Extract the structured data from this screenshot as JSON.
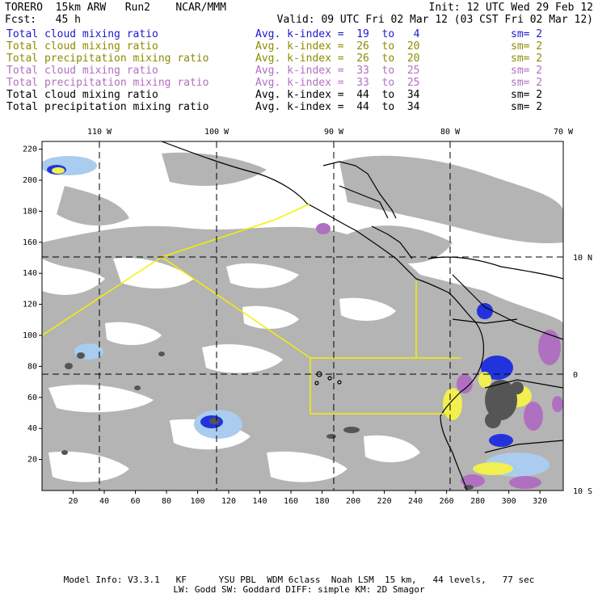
{
  "header": {
    "model": "TORERO  15km ARW   Run2    NCAR/MMM",
    "init": "Init: 12 UTC Wed 29 Feb 12",
    "fcst": "Fcst:   45 h",
    "valid": "Valid: 09 UTC Fri 02 Mar 12 (03 CST Fri 02 Mar 12)"
  },
  "legend": [
    {
      "name": "Total cloud mixing ratio",
      "avg": "Avg. k-index =  19  to   4",
      "sm": "sm= 2",
      "color": "#1a1acc"
    },
    {
      "name": "Total cloud mixing ratio",
      "avg": "Avg. k-index =  26  to  20",
      "sm": "sm= 2",
      "color": "#8c8c00"
    },
    {
      "name": "Total precipitation mixing ratio",
      "avg": "Avg. k-index =  26  to  20",
      "sm": "sm= 2",
      "color": "#8c8c00"
    },
    {
      "name": "Total cloud mixing ratio",
      "avg": "Avg. k-index =  33  to  25",
      "sm": "sm= 2",
      "color": "#b070c0"
    },
    {
      "name": "Total precipitation mixing ratio",
      "avg": "Avg. k-index =  33  to  25",
      "sm": "sm= 2",
      "color": "#b070c0"
    },
    {
      "name": "Total cloud mixing ratio",
      "avg": "Avg. k-index =  44  to  34",
      "sm": "sm= 2",
      "color": "#000000"
    },
    {
      "name": "Total precipitation mixing ratio",
      "avg": "Avg. k-index =  44  to  34",
      "sm": "sm= 2",
      "color": "#000000"
    }
  ],
  "map": {
    "lon_labels": [
      "110 W",
      "100 W",
      "90 W",
      "80 W",
      "70 W"
    ],
    "lat_labels": [
      "10 N",
      "0",
      "10 S"
    ],
    "x_ticks": [
      "20",
      "40",
      "60",
      "80",
      "100",
      "120",
      "140",
      "160",
      "180",
      "200",
      "220",
      "240",
      "260",
      "280",
      "300",
      "320"
    ],
    "y_ticks": [
      "20",
      "40",
      "60",
      "80",
      "100",
      "120",
      "140",
      "160",
      "180",
      "200",
      "220"
    ],
    "x_range": [
      0,
      335
    ],
    "y_range": [
      0,
      225
    ],
    "colors": {
      "cloud_gray": "#b4b4b4",
      "dark": "#555555",
      "blue": "#2233dd",
      "light_blue": "#aaccee",
      "yellow": "#f2ef50",
      "purple": "#b070c0",
      "coast": "#000000",
      "track": "#f5f000"
    }
  },
  "footer": {
    "line1": "Model Info: V3.3.1   KF      YSU PBL  WDM 6class  Noah LSM  15 km,   44 levels,   77 sec",
    "line2": "LW: Godd SW: Goddard DIFF: simple KM: 2D Smagor"
  }
}
